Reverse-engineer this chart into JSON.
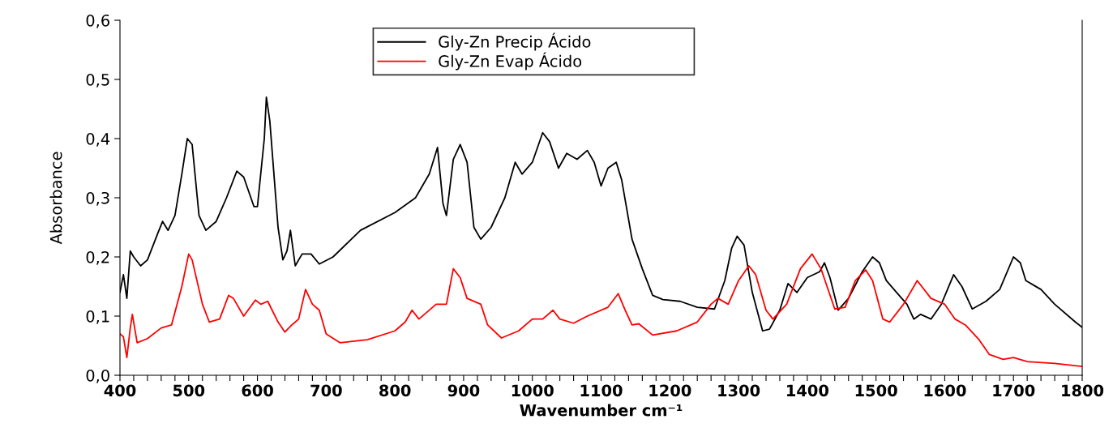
{
  "chart_data": {
    "type": "line",
    "xlabel": "Wavenumber cm⁻¹",
    "ylabel": "Absorbance",
    "xlim": [
      400,
      1800
    ],
    "ylim": [
      0,
      0.6
    ],
    "xticks": [
      400,
      {
        "value": 420,
        "label": null
      },
      {
        "value": 440,
        "label": null
      },
      {
        "value": 460,
        "label": null
      },
      {
        "value": 480,
        "label": null
      },
      500,
      {
        "value": 520,
        "label": null
      },
      {
        "value": 540,
        "label": null
      },
      {
        "value": 560,
        "label": null
      },
      {
        "value": 580,
        "label": null
      },
      600,
      {
        "value": 620,
        "label": null
      },
      {
        "value": 640,
        "label": null
      },
      {
        "value": 660,
        "label": null
      },
      {
        "value": 680,
        "label": null
      },
      700,
      {
        "value": 720,
        "label": null
      },
      {
        "value": 740,
        "label": null
      },
      {
        "value": 760,
        "label": null
      },
      {
        "value": 780,
        "label": null
      },
      800,
      {
        "value": 820,
        "label": null
      },
      {
        "value": 840,
        "label": null
      },
      {
        "value": 860,
        "label": null
      },
      {
        "value": 880,
        "label": null
      },
      900,
      {
        "value": 920,
        "label": null
      },
      {
        "value": 940,
        "label": null
      },
      {
        "value": 960,
        "label": null
      },
      {
        "value": 980,
        "label": null
      },
      1000,
      {
        "value": 1020,
        "label": null
      },
      {
        "value": 1040,
        "label": null
      },
      {
        "value": 1060,
        "label": null
      },
      {
        "value": 1080,
        "label": null
      },
      1100,
      {
        "value": 1120,
        "label": null
      },
      {
        "value": 1140,
        "label": null
      },
      {
        "value": 1160,
        "label": null
      },
      {
        "value": 1180,
        "label": null
      },
      1200,
      {
        "value": 1220,
        "label": null
      },
      {
        "value": 1240,
        "label": null
      },
      {
        "value": 1260,
        "label": null
      },
      {
        "value": 1280,
        "label": null
      },
      1300,
      {
        "value": 1320,
        "label": null
      },
      {
        "value": 1340,
        "label": null
      },
      {
        "value": 1360,
        "label": null
      },
      {
        "value": 1380,
        "label": null
      },
      1400,
      {
        "value": 1420,
        "label": null
      },
      {
        "value": 1440,
        "label": null
      },
      {
        "value": 1460,
        "label": null
      },
      {
        "value": 1480,
        "label": null
      },
      1500,
      {
        "value": 1520,
        "label": null
      },
      {
        "value": 1540,
        "label": null
      },
      {
        "value": 1560,
        "label": null
      },
      {
        "value": 1580,
        "label": null
      },
      1600,
      {
        "value": 1620,
        "label": null
      },
      {
        "value": 1640,
        "label": null
      },
      {
        "value": 1660,
        "label": null
      },
      {
        "value": 1680,
        "label": null
      },
      1700,
      {
        "value": 1720,
        "label": null
      },
      {
        "value": 1740,
        "label": null
      },
      {
        "value": 1760,
        "label": null
      },
      {
        "value": 1780,
        "label": null
      },
      1800
    ],
    "yticks": [
      {
        "value": 0,
        "label": "0,0"
      },
      {
        "value": 0.1,
        "label": "0,1"
      },
      {
        "value": 0.2,
        "label": "0,2"
      },
      {
        "value": 0.3,
        "label": "0,3"
      },
      {
        "value": 0.4,
        "label": "0,4"
      },
      {
        "value": 0.5,
        "label": "0,5"
      },
      {
        "value": 0.6,
        "label": "0,6"
      }
    ],
    "grid": false,
    "legend": "top",
    "marker": "none",
    "line_style": "solid",
    "series": [
      {
        "name": "Gly-Zn Precip Ácido",
        "color": "#000000",
        "x": [
          400,
          405,
          410,
          415,
          420,
          430,
          440,
          455,
          462,
          470,
          480,
          490,
          498,
          505,
          515,
          525,
          540,
          555,
          570,
          580,
          595,
          600,
          610,
          613,
          618,
          630,
          637,
          643,
          648,
          655,
          665,
          678,
          690,
          710,
          750,
          800,
          830,
          850,
          862,
          870,
          875,
          885,
          895,
          905,
          915,
          925,
          940,
          960,
          975,
          985,
          1000,
          1015,
          1025,
          1038,
          1050,
          1065,
          1080,
          1090,
          1100,
          1110,
          1122,
          1130,
          1145,
          1160,
          1175,
          1190,
          1215,
          1240,
          1265,
          1280,
          1290,
          1298,
          1308,
          1320,
          1335,
          1345,
          1360,
          1372,
          1385,
          1400,
          1418,
          1425,
          1433,
          1445,
          1460,
          1480,
          1495,
          1505,
          1515,
          1530,
          1545,
          1555,
          1565,
          1580,
          1595,
          1613,
          1625,
          1640,
          1660,
          1680,
          1700,
          1710,
          1718,
          1740,
          1760,
          1790,
          1800
        ],
        "values": [
          0.14,
          0.17,
          0.13,
          0.21,
          0.2,
          0.185,
          0.195,
          0.24,
          0.26,
          0.245,
          0.27,
          0.34,
          0.4,
          0.39,
          0.27,
          0.245,
          0.26,
          0.3,
          0.345,
          0.335,
          0.285,
          0.285,
          0.4,
          0.47,
          0.43,
          0.25,
          0.195,
          0.21,
          0.245,
          0.185,
          0.205,
          0.205,
          0.188,
          0.2,
          0.245,
          0.275,
          0.3,
          0.34,
          0.385,
          0.29,
          0.27,
          0.365,
          0.39,
          0.36,
          0.25,
          0.23,
          0.25,
          0.3,
          0.36,
          0.34,
          0.36,
          0.41,
          0.395,
          0.35,
          0.375,
          0.365,
          0.38,
          0.36,
          0.32,
          0.35,
          0.36,
          0.33,
          0.23,
          0.18,
          0.135,
          0.128,
          0.125,
          0.115,
          0.112,
          0.16,
          0.215,
          0.235,
          0.22,
          0.14,
          0.075,
          0.078,
          0.11,
          0.155,
          0.14,
          0.165,
          0.175,
          0.19,
          0.165,
          0.11,
          0.13,
          0.175,
          0.2,
          0.19,
          0.16,
          0.14,
          0.12,
          0.095,
          0.103,
          0.095,
          0.12,
          0.17,
          0.15,
          0.112,
          0.125,
          0.145,
          0.2,
          0.19,
          0.16,
          0.145,
          0.12,
          0.09,
          0.081
        ]
      },
      {
        "name": "Gly-Zn Evap Ácido",
        "color": "#ff0000",
        "x": [
          400,
          405,
          410,
          415,
          418,
          425,
          440,
          460,
          475,
          490,
          500,
          505,
          520,
          530,
          545,
          558,
          565,
          580,
          597,
          605,
          615,
          630,
          640,
          650,
          660,
          670,
          680,
          690,
          700,
          720,
          760,
          800,
          815,
          825,
          835,
          860,
          875,
          885,
          895,
          905,
          925,
          935,
          955,
          980,
          1000,
          1015,
          1030,
          1040,
          1060,
          1080,
          1110,
          1125,
          1135,
          1145,
          1155,
          1175,
          1210,
          1240,
          1260,
          1270,
          1285,
          1300,
          1315,
          1325,
          1340,
          1350,
          1370,
          1390,
          1407,
          1420,
          1440,
          1455,
          1470,
          1485,
          1495,
          1510,
          1520,
          1540,
          1560,
          1580,
          1600,
          1615,
          1630,
          1650,
          1665,
          1685,
          1700,
          1720,
          1760,
          1800
        ],
        "values": [
          0.07,
          0.065,
          0.03,
          0.08,
          0.103,
          0.055,
          0.062,
          0.08,
          0.085,
          0.15,
          0.205,
          0.195,
          0.12,
          0.09,
          0.095,
          0.135,
          0.13,
          0.1,
          0.127,
          0.12,
          0.125,
          0.09,
          0.073,
          0.085,
          0.095,
          0.145,
          0.12,
          0.11,
          0.07,
          0.055,
          0.06,
          0.075,
          0.09,
          0.11,
          0.095,
          0.12,
          0.12,
          0.18,
          0.165,
          0.13,
          0.12,
          0.085,
          0.063,
          0.075,
          0.095,
          0.095,
          0.11,
          0.095,
          0.088,
          0.1,
          0.115,
          0.138,
          0.11,
          0.085,
          0.087,
          0.068,
          0.075,
          0.09,
          0.12,
          0.13,
          0.12,
          0.16,
          0.185,
          0.17,
          0.11,
          0.095,
          0.12,
          0.18,
          0.205,
          0.18,
          0.112,
          0.115,
          0.16,
          0.178,
          0.16,
          0.095,
          0.09,
          0.12,
          0.16,
          0.13,
          0.12,
          0.095,
          0.085,
          0.06,
          0.035,
          0.027,
          0.03,
          0.023,
          0.02,
          0.015
        ]
      }
    ]
  }
}
